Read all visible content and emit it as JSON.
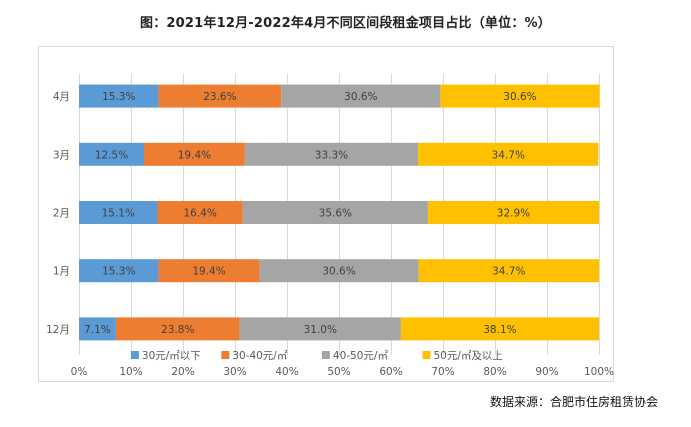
{
  "chart_data": {
    "type": "bar",
    "orientation": "horizontal",
    "stacked": "percent",
    "title": "图：2021年12月-2022年4月不同区间段租金项目占比（单位：%）",
    "xlabel": "",
    "ylabel": "",
    "xlim": [
      0,
      100
    ],
    "x_ticks": [
      "0%",
      "10%",
      "20%",
      "30%",
      "40%",
      "50%",
      "60%",
      "70%",
      "80%",
      "90%",
      "100%"
    ],
    "grid": true,
    "legend_position": "bottom",
    "categories": [
      "12月",
      "1月",
      "2月",
      "3月",
      "4月"
    ],
    "series": [
      {
        "name": "30元/㎡以下",
        "color": "#5b9bd5",
        "values": [
          7.1,
          15.3,
          15.1,
          12.5,
          15.3
        ]
      },
      {
        "name": "30-40元/㎡",
        "color": "#ed7d31",
        "values": [
          23.8,
          19.4,
          16.4,
          19.4,
          23.6
        ]
      },
      {
        "name": "40-50元/㎡",
        "color": "#a5a5a5",
        "values": [
          31.0,
          30.6,
          35.6,
          33.3,
          30.6
        ]
      },
      {
        "name": "50元/㎡及以上",
        "color": "#ffc000",
        "values": [
          38.1,
          34.7,
          32.9,
          34.7,
          30.6
        ]
      }
    ]
  },
  "source_note": "数据来源：合肥市住房租赁协会"
}
